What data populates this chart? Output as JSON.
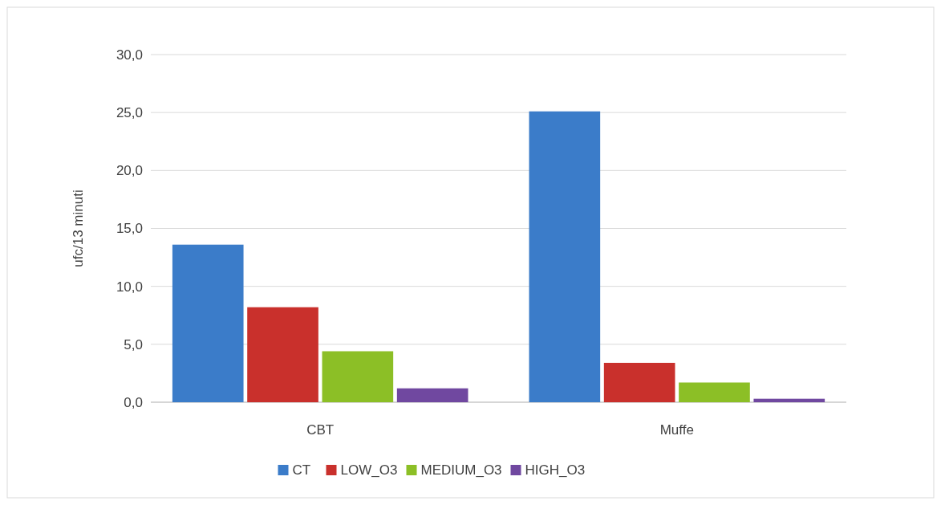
{
  "chart_data": {
    "type": "bar",
    "ylabel": "ufc/13 minuti",
    "categories": [
      "CBT",
      "Muffe"
    ],
    "series": [
      {
        "name": "CT",
        "color": "#3b7cc9",
        "values": [
          13.6,
          25.1
        ]
      },
      {
        "name": "LOW_O3",
        "color": "#c9302c",
        "values": [
          8.2,
          3.4
        ]
      },
      {
        "name": "MEDIUM_O3",
        "color": "#8cbf26",
        "values": [
          4.4,
          1.7
        ]
      },
      {
        "name": "HIGH_O3",
        "color": "#7048a0",
        "values": [
          1.2,
          0.3
        ]
      }
    ],
    "ylim": [
      0,
      30
    ],
    "yticks": [
      {
        "value": 0,
        "label": "0,0"
      },
      {
        "value": 5,
        "label": "5,0"
      },
      {
        "value": 10,
        "label": "10,0"
      },
      {
        "value": 15,
        "label": "15,0"
      },
      {
        "value": 20,
        "label": "20,0"
      },
      {
        "value": 25,
        "label": "25,0"
      },
      {
        "value": 30,
        "label": "30,0"
      }
    ],
    "grid": "y",
    "legend": "bottom"
  }
}
